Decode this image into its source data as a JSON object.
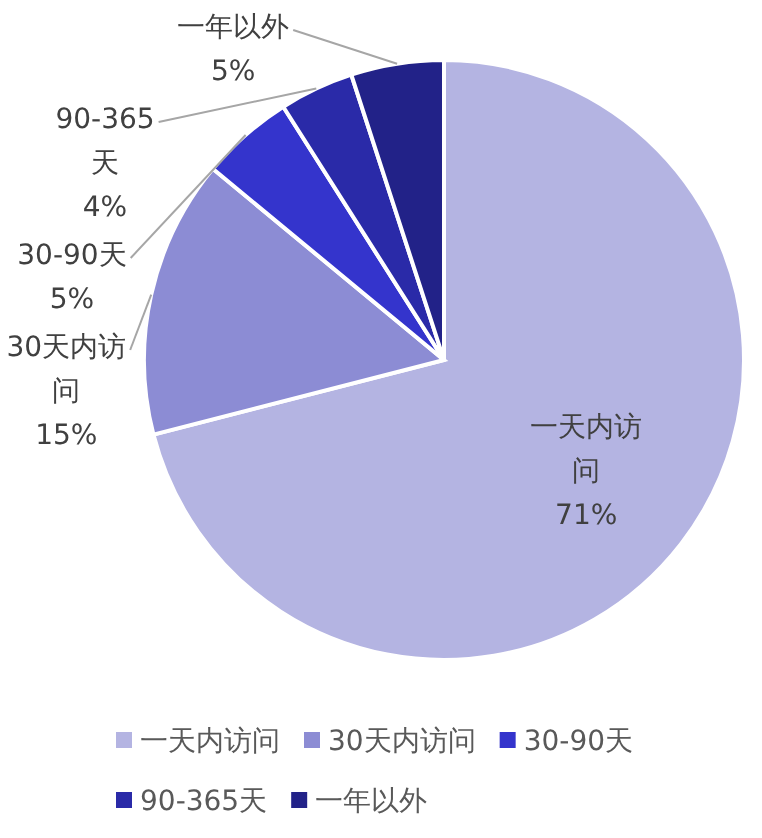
{
  "chart_data": {
    "type": "pie",
    "categories": [
      "一天内访问",
      "30天内访问",
      "30-90天",
      "90-365天",
      "一年以外"
    ],
    "values": [
      71,
      15,
      5,
      4,
      5
    ],
    "value_labels": [
      "71%",
      "15%",
      "5%",
      "4%",
      "5%"
    ],
    "colors": [
      "#b4b4e2",
      "#8c8cd4",
      "#3434cc",
      "#2a2aa8",
      "#222288"
    ],
    "legend": "bottom"
  }
}
